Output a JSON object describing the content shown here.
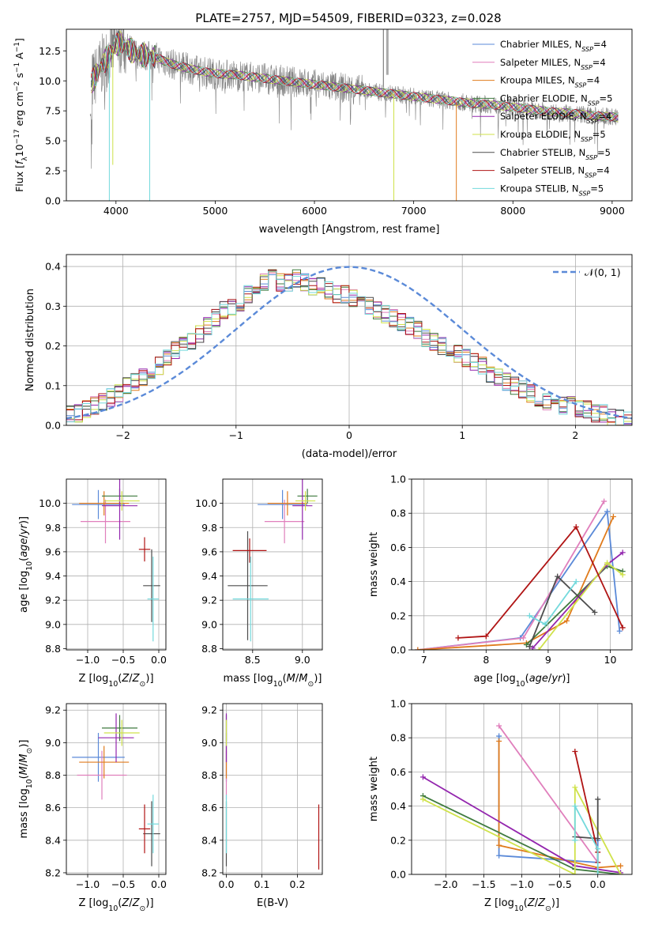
{
  "figure_title": "PLATE=2757, MJD=54509, FIBERID=0323, z=0.028",
  "colors": {
    "Chabrier MILES": "#5b8ad8",
    "Salpeter MILES": "#e07fbc",
    "Kroupa MILES": "#e07b1c",
    "Chabrier ELODIE": "#3f7a3f",
    "Salpeter ELODIE": "#9326ae",
    "Kroupa ELODIE": "#cfe24a",
    "Chabrier STELIB": "#4d4d4d",
    "Salpeter STELIB": "#b01414",
    "Kroupa STELIB": "#73d9dc",
    "observed": "#808080"
  },
  "chart_data": [
    {
      "type": "line",
      "title": "PLATE=2757, MJD=54509, FIBERID=0323, z=0.028",
      "xlabel": "wavelength [Angstrom, rest frame]",
      "ylabel": "Flux [f_λ10^-17 erg cm^-2 s^-1 A^-1]",
      "xlim": [
        3500,
        9200
      ],
      "ylim": [
        0,
        14.3
      ],
      "xticks": [
        4000,
        5000,
        6000,
        7000,
        8000,
        9000
      ],
      "yticks": [
        0.0,
        2.5,
        5.0,
        7.5,
        10.0,
        12.5
      ],
      "legend_position": "top-right",
      "legend": [
        "Chabrier MILES, N_SSP=4",
        "Salpeter MILES, N_SSP=4",
        "Kroupa MILES, N_SSP=4",
        "Chabrier ELODIE, N_SSP=5",
        "Salpeter ELODIE, N_SSP=4",
        "Kroupa ELODIE, N_SSP=5",
        "Chabrier STELIB, N_SSP=5",
        "Salpeter STELIB, N_SSP=4",
        "Kroupa STELIB, N_SSP=5"
      ],
      "continuum": {
        "x": [
          3750,
          3800,
          3850,
          3900,
          3950,
          4000,
          4050,
          4100,
          4200,
          4300,
          4400,
          4500,
          4600,
          4800,
          5000,
          5200,
          5400,
          5600,
          5800,
          6000,
          6200,
          6400,
          6600,
          6800,
          7000,
          7200,
          7400,
          7600,
          7800,
          8000,
          8200,
          8400,
          8600,
          8800,
          9000,
          9100
        ],
        "y": [
          9.8,
          10.5,
          11.2,
          11.8,
          12.4,
          13.0,
          13.2,
          12.8,
          12.3,
          12.1,
          12.0,
          11.6,
          11.3,
          10.9,
          10.6,
          10.5,
          10.3,
          10.1,
          9.9,
          9.7,
          9.5,
          9.3,
          9.1,
          8.9,
          8.7,
          8.5,
          8.3,
          8.1,
          8.0,
          7.8,
          7.6,
          7.4,
          7.3,
          7.1,
          7.0,
          6.9
        ]
      },
      "absorption_dips": [
        {
          "x": 3933,
          "depth_to": 0.0,
          "series": "all"
        },
        {
          "x": 3968,
          "depth_to": 3.0,
          "series": "Kroupa ELODIE"
        },
        {
          "x": 4340,
          "depth_to": 0.0,
          "series": "Kroupa STELIB"
        },
        {
          "x": 6800,
          "depth_to": 0.0,
          "series": "Kroupa ELODIE"
        },
        {
          "x": 7430,
          "depth_to": 0.0,
          "series": "Kroupa MILES"
        }
      ]
    },
    {
      "type": "line",
      "xlabel": "(data-model)/error",
      "ylabel": "Normed distribution",
      "xlim": [
        -2.5,
        2.5
      ],
      "ylim": [
        0,
        0.43
      ],
      "xticks": [
        -2,
        -1,
        0,
        1,
        2
      ],
      "yticks": [
        0.0,
        0.1,
        0.2,
        0.3,
        0.4
      ],
      "legend_position": "top-right",
      "legend": [
        "𝒩(0, 1)"
      ],
      "bin_width": 0.1,
      "bin_start": -2.5,
      "histogram_base": [
        0.03,
        0.03,
        0.04,
        0.05,
        0.06,
        0.07,
        0.08,
        0.1,
        0.11,
        0.12,
        0.14,
        0.15,
        0.17,
        0.19,
        0.2,
        0.21,
        0.23,
        0.25,
        0.27,
        0.29,
        0.3,
        0.31,
        0.33,
        0.34,
        0.36,
        0.37,
        0.36,
        0.36,
        0.37,
        0.36,
        0.35,
        0.35,
        0.34,
        0.33,
        0.33,
        0.32,
        0.31,
        0.3,
        0.29,
        0.28,
        0.27,
        0.26,
        0.25,
        0.24,
        0.22,
        0.21,
        0.2,
        0.19,
        0.18,
        0.17,
        0.16,
        0.15,
        0.13,
        0.12,
        0.11,
        0.1,
        0.09,
        0.08,
        0.07,
        0.06,
        0.06,
        0.05,
        0.05,
        0.04,
        0.04,
        0.03,
        0.03,
        0.02,
        0.02,
        0.02
      ]
    },
    {
      "type": "scatter",
      "xlabel": "Z [log10(Z/Z⊙)]",
      "ylabel": "age [log10(age/yr)]",
      "xlim": [
        -1.3,
        0.1
      ],
      "ylim": [
        8.79,
        10.2
      ],
      "xticks": [
        -1.0,
        -0.5,
        0.0
      ],
      "yticks": [
        8.8,
        9.0,
        9.2,
        9.4,
        9.6,
        9.8,
        10.0
      ],
      "points": [
        {
          "series": "Chabrier MILES",
          "x": -0.85,
          "y": 9.99,
          "xerr": 0.37,
          "yerr": 0.12
        },
        {
          "series": "Salpeter MILES",
          "x": -0.75,
          "y": 9.85,
          "xerr": 0.35,
          "yerr": 0.18
        },
        {
          "series": "Kroupa MILES",
          "x": -0.77,
          "y": 10.0,
          "xerr": 0.35,
          "yerr": 0.1
        },
        {
          "series": "Chabrier ELODIE",
          "x": -0.55,
          "y": 10.06,
          "xerr": 0.25,
          "yerr": 0.06
        },
        {
          "series": "Salpeter ELODIE",
          "x": -0.55,
          "y": 9.98,
          "xerr": 0.25,
          "yerr": 0.28
        },
        {
          "series": "Kroupa ELODIE",
          "x": -0.52,
          "y": 10.02,
          "xerr": 0.25,
          "yerr": 0.08
        },
        {
          "series": "Chabrier STELIB",
          "x": -0.1,
          "y": 9.32,
          "xerr": 0.12,
          "yerr": 0.3
        },
        {
          "series": "Salpeter STELIB",
          "x": -0.2,
          "y": 9.62,
          "xerr": 0.08,
          "yerr": 0.1
        },
        {
          "series": "Kroupa STELIB",
          "x": -0.08,
          "y": 9.21,
          "xerr": 0.08,
          "yerr": 0.35
        }
      ]
    },
    {
      "type": "scatter",
      "xlabel": "mass [log10(M/M⊙)]",
      "xlim": [
        8.2,
        9.2
      ],
      "ylim": [
        8.79,
        10.2
      ],
      "xticks": [
        8.5,
        9.0
      ],
      "yticks": [
        8.8,
        9.0,
        9.2,
        9.4,
        9.6,
        9.8,
        10.0
      ],
      "points": [
        {
          "series": "Chabrier MILES",
          "x": 8.8,
          "y": 9.99,
          "xerr": 0.25,
          "yerr": 0.12
        },
        {
          "series": "Salpeter MILES",
          "x": 8.82,
          "y": 9.85,
          "xerr": 0.2,
          "yerr": 0.18
        },
        {
          "series": "Kroupa MILES",
          "x": 8.85,
          "y": 10.0,
          "xerr": 0.2,
          "yerr": 0.1
        },
        {
          "series": "Chabrier ELODIE",
          "x": 9.05,
          "y": 10.06,
          "xerr": 0.1,
          "yerr": 0.06
        },
        {
          "series": "Salpeter ELODIE",
          "x": 9.0,
          "y": 9.98,
          "xerr": 0.1,
          "yerr": 0.28
        },
        {
          "series": "Kroupa ELODIE",
          "x": 9.03,
          "y": 10.02,
          "xerr": 0.1,
          "yerr": 0.08
        },
        {
          "series": "Chabrier STELIB",
          "x": 8.45,
          "y": 9.32,
          "xerr": 0.2,
          "yerr": 0.45
        },
        {
          "series": "Salpeter STELIB",
          "x": 8.47,
          "y": 9.61,
          "xerr": 0.17,
          "yerr": 0.1
        },
        {
          "series": "Kroupa STELIB",
          "x": 8.48,
          "y": 9.21,
          "xerr": 0.18,
          "yerr": 0.35
        }
      ]
    },
    {
      "type": "line",
      "xlabel": "age [log10(age/yr)]",
      "ylabel": "mass weight",
      "xlim": [
        6.8,
        10.35
      ],
      "ylim": [
        0,
        1.0
      ],
      "xticks": [
        7,
        8,
        9,
        10
      ],
      "yticks": [
        0.0,
        0.2,
        0.4,
        0.6,
        0.8,
        1.0
      ],
      "series": [
        {
          "name": "Chabrier MILES",
          "x": [
            6.9,
            8.55,
            9.95,
            10.15
          ],
          "y": [
            0.0,
            0.07,
            0.81,
            0.11
          ]
        },
        {
          "name": "Salpeter MILES",
          "x": [
            6.9,
            8.6,
            9.9
          ],
          "y": [
            0.0,
            0.07,
            0.87
          ]
        },
        {
          "name": "Kroupa MILES",
          "x": [
            6.9,
            8.65,
            9.3,
            10.05
          ],
          "y": [
            0.0,
            0.04,
            0.17,
            0.78
          ]
        },
        {
          "name": "Chabrier ELODIE",
          "x": [
            8.65,
            9.95,
            10.2
          ],
          "y": [
            0.03,
            0.49,
            0.46
          ]
        },
        {
          "name": "Salpeter ELODIE",
          "x": [
            8.75,
            9.95,
            10.2
          ],
          "y": [
            0.01,
            0.5,
            0.57
          ]
        },
        {
          "name": "Kroupa ELODIE",
          "x": [
            8.85,
            9.95,
            10.2
          ],
          "y": [
            0.0,
            0.51,
            0.44
          ]
        },
        {
          "name": "Chabrier STELIB",
          "x": [
            8.7,
            9.15,
            9.75
          ],
          "y": [
            0.02,
            0.43,
            0.22
          ]
        },
        {
          "name": "Salpeter STELIB",
          "x": [
            7.55,
            8.0,
            9.45,
            10.2
          ],
          "y": [
            0.07,
            0.08,
            0.72,
            0.13
          ]
        },
        {
          "name": "Kroupa STELIB",
          "x": [
            8.7,
            8.95,
            9.45
          ],
          "y": [
            0.2,
            0.15,
            0.4
          ]
        }
      ]
    },
    {
      "type": "scatter",
      "xlabel": "Z [log10(Z/Z⊙)]",
      "ylabel": "mass [log10(M/M⊙)]",
      "xlim": [
        -1.3,
        0.1
      ],
      "ylim": [
        8.19,
        9.24
      ],
      "xticks": [
        -1.0,
        -0.5,
        0.0
      ],
      "yticks": [
        8.2,
        8.4,
        8.6,
        8.8,
        9.0,
        9.2
      ],
      "points": [
        {
          "series": "Chabrier MILES",
          "x": -0.85,
          "y": 8.91,
          "xerr": 0.37,
          "yerr": 0.15
        },
        {
          "series": "Salpeter MILES",
          "x": -0.8,
          "y": 8.8,
          "xerr": 0.35,
          "yerr": 0.15
        },
        {
          "series": "Kroupa MILES",
          "x": -0.77,
          "y": 8.88,
          "xerr": 0.35,
          "yerr": 0.1
        },
        {
          "series": "Chabrier ELODIE",
          "x": -0.55,
          "y": 9.09,
          "xerr": 0.25,
          "yerr": 0.08
        },
        {
          "series": "Salpeter ELODIE",
          "x": -0.6,
          "y": 9.03,
          "xerr": 0.25,
          "yerr": 0.15
        },
        {
          "series": "Kroupa ELODIE",
          "x": -0.52,
          "y": 9.06,
          "xerr": 0.25,
          "yerr": 0.08
        },
        {
          "series": "Chabrier STELIB",
          "x": -0.1,
          "y": 8.44,
          "xerr": 0.12,
          "yerr": 0.2
        },
        {
          "series": "Salpeter STELIB",
          "x": -0.2,
          "y": 8.47,
          "xerr": 0.08,
          "yerr": 0.15
        },
        {
          "series": "Kroupa STELIB",
          "x": -0.08,
          "y": 8.5,
          "xerr": 0.08,
          "yerr": 0.18
        }
      ]
    },
    {
      "type": "scatter",
      "xlabel": "E(B-V)",
      "xlim": [
        -0.01,
        0.27
      ],
      "ylim": [
        8.19,
        9.24
      ],
      "xticks": [
        0.0,
        0.1,
        0.2
      ],
      "yticks": [
        8.2,
        8.4,
        8.6,
        8.8,
        9.0,
        9.2
      ],
      "points": [
        {
          "series": "Chabrier MILES",
          "x": 0.0,
          "y": 8.91,
          "xerr": 0.0,
          "yerr": 0.15
        },
        {
          "series": "Salpeter MILES",
          "x": 0.0,
          "y": 8.8,
          "xerr": 0.0,
          "yerr": 0.15
        },
        {
          "series": "Kroupa MILES",
          "x": 0.0,
          "y": 8.88,
          "xerr": 0.0,
          "yerr": 0.1
        },
        {
          "series": "Chabrier ELODIE",
          "x": 0.0,
          "y": 9.09,
          "xerr": 0.0,
          "yerr": 0.08
        },
        {
          "series": "Salpeter ELODIE",
          "x": 0.0,
          "y": 9.03,
          "xerr": 0.0,
          "yerr": 0.15
        },
        {
          "series": "Kroupa ELODIE",
          "x": 0.0,
          "y": 9.06,
          "xerr": 0.0,
          "yerr": 0.08
        },
        {
          "series": "Chabrier STELIB",
          "x": 0.0,
          "y": 8.44,
          "xerr": 0.0,
          "yerr": 0.2
        },
        {
          "series": "Salpeter STELIB",
          "x": 0.26,
          "y": 8.42,
          "xerr": 0.0,
          "yerr": 0.2
        },
        {
          "series": "Kroupa STELIB",
          "x": 0.0,
          "y": 8.5,
          "xerr": 0.0,
          "yerr": 0.18
        }
      ]
    },
    {
      "type": "line",
      "xlabel": "Z [log10(Z/Z⊙)]",
      "ylabel": "mass weight",
      "xlim": [
        -2.45,
        0.45
      ],
      "ylim": [
        0,
        1.0
      ],
      "xticks": [
        -2.0,
        -1.5,
        -1.0,
        -0.5,
        0.0
      ],
      "yticks": [
        0.0,
        0.2,
        0.4,
        0.6,
        0.8,
        1.0
      ],
      "series": [
        {
          "name": "Chabrier MILES",
          "x": [
            -1.3,
            -1.3,
            0.0,
            0.0
          ],
          "y": [
            0.81,
            0.11,
            0.07,
            0.2
          ]
        },
        {
          "name": "Salpeter MILES",
          "x": [
            -1.3,
            0.0
          ],
          "y": [
            0.87,
            0.07
          ]
        },
        {
          "name": "Kroupa MILES",
          "x": [
            -1.3,
            -1.3,
            0.0,
            0.3
          ],
          "y": [
            0.78,
            0.17,
            0.04,
            0.05
          ]
        },
        {
          "name": "Chabrier ELODIE",
          "x": [
            -2.3,
            -0.3,
            0.3
          ],
          "y": [
            0.46,
            0.03,
            0.0
          ]
        },
        {
          "name": "Salpeter ELODIE",
          "x": [
            -2.3,
            -0.3,
            0.3
          ],
          "y": [
            0.57,
            0.05,
            0.01
          ]
        },
        {
          "name": "Kroupa ELODIE",
          "x": [
            -2.3,
            -0.3,
            -0.3,
            0.3
          ],
          "y": [
            0.44,
            0.0,
            0.51,
            0.0
          ]
        },
        {
          "name": "Chabrier STELIB",
          "x": [
            -0.3,
            0.0,
            0.0
          ],
          "y": [
            0.22,
            0.21,
            0.44
          ]
        },
        {
          "name": "Salpeter STELIB",
          "x": [
            -0.3,
            0.0,
            0.0
          ],
          "y": [
            0.72,
            0.13,
            0.07
          ]
        },
        {
          "name": "Kroupa STELIB",
          "x": [
            -0.3,
            -0.3,
            0.0,
            0.0
          ],
          "y": [
            0.2,
            0.4,
            0.15,
            0.0
          ]
        }
      ]
    }
  ]
}
